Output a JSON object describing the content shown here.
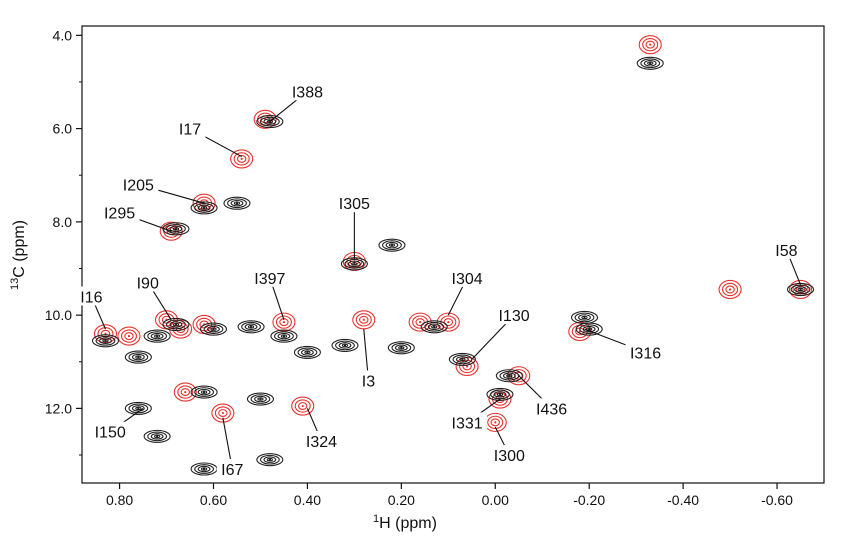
{
  "chart_data": {
    "type": "scatter",
    "xlabel_main": "H (ppm)",
    "xlabel_sup": "1",
    "ylabel_main": "C (ppm)",
    "ylabel_sup": "13",
    "xlim": [
      0.88,
      -0.7
    ],
    "ylim": [
      3.8,
      13.6
    ],
    "x_reversed": true,
    "y_reversed": true,
    "x_ticks": [
      0.8,
      0.6,
      0.4,
      0.2,
      0.0,
      -0.2,
      -0.4,
      -0.6
    ],
    "x_tick_labels": [
      "0.80",
      "0.60",
      "0.40",
      "0.20",
      "0.00",
      "-0.20",
      "-0.40",
      "-0.60"
    ],
    "y_ticks": [
      4,
      6,
      8,
      10,
      12
    ],
    "y_tick_labels": [
      "4.0",
      "6.0",
      "8.0",
      "10.0",
      "12.0"
    ],
    "y_minor_ticks": [
      5,
      7,
      9,
      11,
      13
    ],
    "grid": false,
    "colors": {
      "red": "#e8322e",
      "black": "#222222"
    },
    "series": [
      {
        "color": "red",
        "peaks": [
          [
            0.83,
            10.4
          ],
          [
            0.78,
            10.45
          ],
          [
            0.7,
            10.1
          ],
          [
            0.67,
            10.3
          ],
          [
            0.62,
            10.2
          ],
          [
            0.69,
            8.2
          ],
          [
            0.62,
            7.6
          ],
          [
            0.54,
            6.65
          ],
          [
            0.49,
            5.8
          ],
          [
            0.45,
            10.15
          ],
          [
            0.66,
            11.65
          ],
          [
            0.58,
            12.1
          ],
          [
            0.41,
            11.95
          ],
          [
            0.3,
            8.85
          ],
          [
            0.28,
            10.1
          ],
          [
            0.16,
            10.15
          ],
          [
            0.1,
            10.15
          ],
          [
            0.06,
            11.1
          ],
          [
            -0.01,
            11.8
          ],
          [
            0.0,
            12.3
          ],
          [
            -0.05,
            11.3
          ],
          [
            -0.18,
            10.35
          ],
          [
            -0.33,
            4.2
          ],
          [
            -0.5,
            9.45
          ],
          [
            -0.65,
            9.45
          ]
        ]
      },
      {
        "color": "black",
        "peaks": [
          [
            0.83,
            10.55
          ],
          [
            0.72,
            10.45
          ],
          [
            0.68,
            10.2
          ],
          [
            0.6,
            10.3
          ],
          [
            0.52,
            10.25
          ],
          [
            0.45,
            10.45
          ],
          [
            0.4,
            10.8
          ],
          [
            0.32,
            10.65
          ],
          [
            0.76,
            10.9
          ],
          [
            0.68,
            8.15
          ],
          [
            0.62,
            7.7
          ],
          [
            0.55,
            7.6
          ],
          [
            0.48,
            5.85
          ],
          [
            0.76,
            12.0
          ],
          [
            0.72,
            12.6
          ],
          [
            0.62,
            13.3
          ],
          [
            0.48,
            13.1
          ],
          [
            0.62,
            11.65
          ],
          [
            0.5,
            11.8
          ],
          [
            0.3,
            8.9
          ],
          [
            0.22,
            8.5
          ],
          [
            0.2,
            10.7
          ],
          [
            0.13,
            10.25
          ],
          [
            0.07,
            10.95
          ],
          [
            -0.01,
            11.7
          ],
          [
            -0.03,
            11.3
          ],
          [
            -0.19,
            10.05
          ],
          [
            -0.2,
            10.3
          ],
          [
            -0.33,
            4.6
          ],
          [
            -0.65,
            9.45
          ]
        ]
      }
    ],
    "annotations": [
      {
        "label": "I388",
        "text_at": [
          0.4,
          5.2
        ],
        "point": [
          0.48,
          5.85
        ]
      },
      {
        "label": "I17",
        "text_at": [
          0.65,
          6.0
        ],
        "point": [
          0.54,
          6.6
        ]
      },
      {
        "label": "I205",
        "text_at": [
          0.76,
          7.2
        ],
        "point": [
          0.62,
          7.6
        ]
      },
      {
        "label": "I295",
        "text_at": [
          0.8,
          7.8
        ],
        "point": [
          0.69,
          8.2
        ]
      },
      {
        "label": "I305",
        "text_at": [
          0.3,
          7.6
        ],
        "point": [
          0.3,
          8.8
        ]
      },
      {
        "label": "I397",
        "text_at": [
          0.48,
          9.2
        ],
        "point": [
          0.45,
          10.1
        ]
      },
      {
        "label": "I90",
        "text_at": [
          0.74,
          9.3
        ],
        "point": [
          0.69,
          10.1
        ]
      },
      {
        "label": "I16",
        "text_at": [
          0.86,
          9.6
        ],
        "point": [
          0.83,
          10.3
        ]
      },
      {
        "label": "I304",
        "text_at": [
          0.06,
          9.2
        ],
        "point": [
          0.1,
          10.0
        ]
      },
      {
        "label": "I58",
        "text_at": [
          -0.62,
          8.6
        ],
        "point": [
          -0.65,
          9.35
        ]
      },
      {
        "label": "I130",
        "text_at": [
          -0.04,
          10.0
        ],
        "point": [
          0.05,
          10.95
        ]
      },
      {
        "label": "I316",
        "text_at": [
          -0.32,
          10.8
        ],
        "point": [
          -0.19,
          10.3
        ]
      },
      {
        "label": "I3",
        "text_at": [
          0.27,
          11.4
        ],
        "point": [
          0.28,
          10.3
        ]
      },
      {
        "label": "I436",
        "text_at": [
          -0.12,
          12.0
        ],
        "point": [
          -0.05,
          11.3
        ]
      },
      {
        "label": "I331",
        "text_at": [
          0.06,
          12.3
        ],
        "point": [
          -0.01,
          11.8
        ]
      },
      {
        "label": "I300",
        "text_at": [
          -0.03,
          13.0
        ],
        "point": [
          0.0,
          12.4
        ]
      },
      {
        "label": "I150",
        "text_at": [
          0.82,
          12.5
        ],
        "point": [
          0.75,
          12.0
        ]
      },
      {
        "label": "I67",
        "text_at": [
          0.56,
          13.3
        ],
        "point": [
          0.58,
          12.2
        ]
      },
      {
        "label": "I324",
        "text_at": [
          0.37,
          12.7
        ],
        "point": [
          0.4,
          12.0
        ]
      }
    ]
  }
}
